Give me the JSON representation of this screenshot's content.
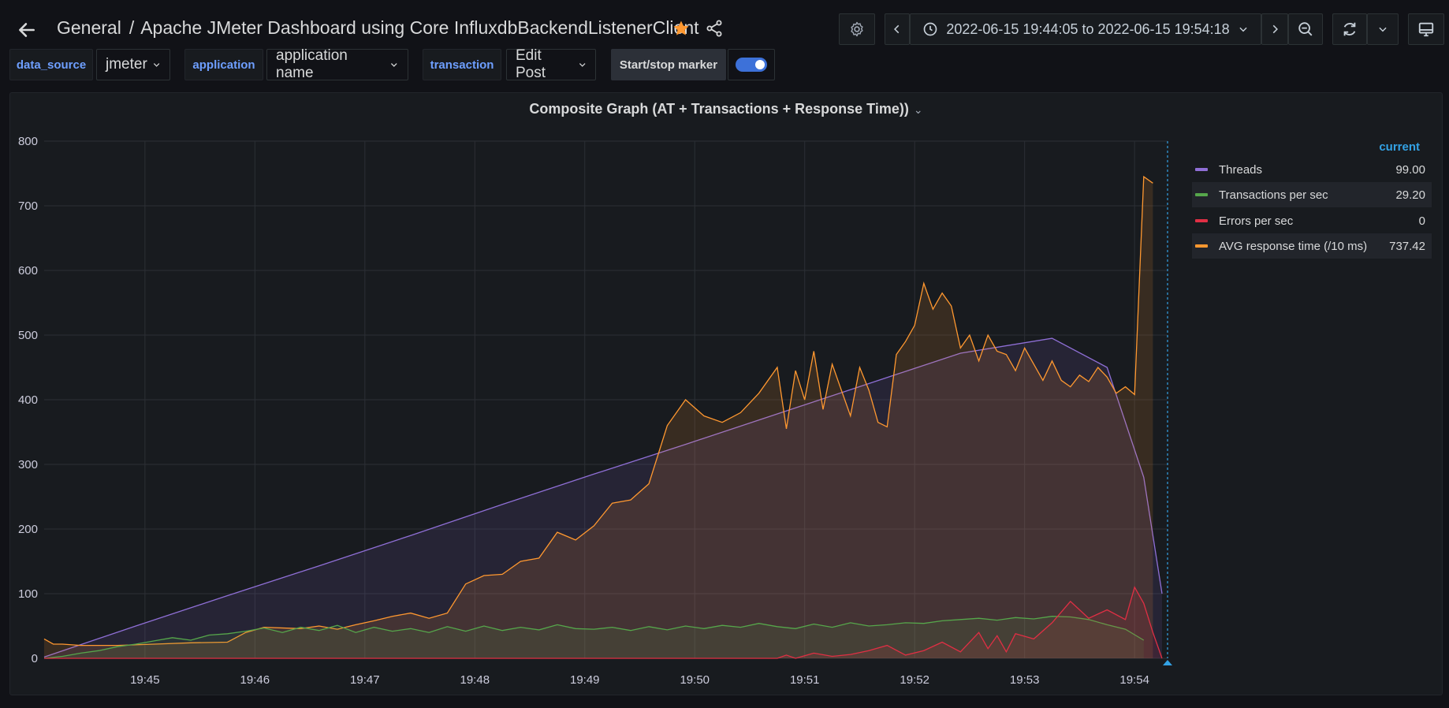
{
  "nav": {
    "folder": "General",
    "separator": "/",
    "title": "Apache JMeter Dashboard using Core InfluxdbBackendListenerClient",
    "time_range": "2022-06-15 19:44:05 to 2022-06-15 19:54:18"
  },
  "icons": {
    "back": "arrow-left-icon",
    "star": "star-icon",
    "share": "share-icon",
    "settings": "gear-icon",
    "prev": "chevron-left-icon",
    "clock": "clock-icon",
    "range_dropdown": "chevron-down-icon",
    "next": "chevron-right-icon",
    "zoom_out": "zoom-out-icon",
    "refresh": "refresh-icon",
    "refresh_dropdown": "chevron-down-icon",
    "tv_mode": "monitor-icon"
  },
  "variables": [
    {
      "label": "data_source",
      "value": "jmeter"
    },
    {
      "label": "application",
      "value": "application name"
    },
    {
      "label": "transaction",
      "value": "Edit Post"
    }
  ],
  "marker": {
    "label": "Start/stop marker",
    "enabled": true
  },
  "panel": {
    "title": "Composite Graph (AT + Transactions + Response Time))"
  },
  "legend": {
    "header": "current",
    "items": [
      {
        "name": "Threads",
        "value": "99.00",
        "color": "#8f6fd6"
      },
      {
        "name": "Transactions per sec",
        "value": "29.20",
        "color": "#56a64b"
      },
      {
        "name": "Errors per sec",
        "value": "0",
        "color": "#e02f44"
      },
      {
        "name": "AVG response time (/10 ms)",
        "value": "737.42",
        "color": "#ff9830"
      }
    ]
  },
  "colors": {
    "threads": "#8f6fd6",
    "transactions": "#56a64b",
    "errors": "#e02f44",
    "response": "#ff9830",
    "accent": "#33a2e5",
    "star": "#ff9830"
  },
  "chart_data": {
    "type": "area",
    "title": "Composite Graph (AT + Transactions + Response Time))",
    "ylim": [
      0,
      800
    ],
    "yticks": [
      "0",
      "100",
      "200",
      "300",
      "400",
      "500",
      "600",
      "700",
      "800"
    ],
    "xticks": [
      "19:45",
      "19:46",
      "19:47",
      "19:48",
      "19:49",
      "19:50",
      "19:51",
      "19:52",
      "19:53",
      "19:54"
    ],
    "x_range_minutes": [
      "19:44:05",
      "19:54:18"
    ],
    "grid": true,
    "legend_placement": "right",
    "series": [
      {
        "name": "Threads",
        "points": [
          [
            0,
            2
          ],
          [
            50,
            50
          ],
          [
            100,
            97
          ],
          [
            150,
            143
          ],
          [
            200,
            190
          ],
          [
            250,
            238
          ],
          [
            300,
            285
          ],
          [
            350,
            331
          ],
          [
            400,
            378
          ],
          [
            450,
            425
          ],
          [
            500,
            472
          ],
          [
            550,
            495
          ],
          [
            580,
            450
          ],
          [
            600,
            280
          ],
          [
            610,
            100
          ]
        ]
      },
      {
        "name": "Transactions per sec",
        "points": [
          [
            0,
            0
          ],
          [
            10,
            3
          ],
          [
            20,
            8
          ],
          [
            30,
            12
          ],
          [
            40,
            18
          ],
          [
            50,
            22
          ],
          [
            60,
            27
          ],
          [
            70,
            32
          ],
          [
            80,
            28
          ],
          [
            90,
            36
          ],
          [
            100,
            38
          ],
          [
            110,
            42
          ],
          [
            120,
            47
          ],
          [
            130,
            40
          ],
          [
            140,
            48
          ],
          [
            150,
            43
          ],
          [
            160,
            51
          ],
          [
            170,
            40
          ],
          [
            180,
            48
          ],
          [
            190,
            42
          ],
          [
            200,
            46
          ],
          [
            210,
            40
          ],
          [
            220,
            49
          ],
          [
            230,
            42
          ],
          [
            240,
            50
          ],
          [
            250,
            43
          ],
          [
            260,
            48
          ],
          [
            270,
            44
          ],
          [
            280,
            52
          ],
          [
            290,
            46
          ],
          [
            300,
            45
          ],
          [
            310,
            48
          ],
          [
            320,
            43
          ],
          [
            330,
            49
          ],
          [
            340,
            44
          ],
          [
            350,
            50
          ],
          [
            360,
            46
          ],
          [
            370,
            51
          ],
          [
            380,
            48
          ],
          [
            390,
            54
          ],
          [
            400,
            49
          ],
          [
            410,
            46
          ],
          [
            420,
            53
          ],
          [
            430,
            48
          ],
          [
            440,
            55
          ],
          [
            450,
            50
          ],
          [
            460,
            52
          ],
          [
            470,
            55
          ],
          [
            480,
            54
          ],
          [
            490,
            58
          ],
          [
            500,
            60
          ],
          [
            510,
            62
          ],
          [
            520,
            59
          ],
          [
            530,
            63
          ],
          [
            540,
            61
          ],
          [
            550,
            65
          ],
          [
            560,
            64
          ],
          [
            570,
            60
          ],
          [
            580,
            52
          ],
          [
            590,
            45
          ],
          [
            600,
            28
          ]
        ]
      },
      {
        "name": "Errors per sec",
        "points": [
          [
            0,
            0
          ],
          [
            400,
            0
          ],
          [
            405,
            5
          ],
          [
            410,
            0
          ],
          [
            420,
            8
          ],
          [
            430,
            3
          ],
          [
            440,
            6
          ],
          [
            450,
            12
          ],
          [
            460,
            20
          ],
          [
            470,
            5
          ],
          [
            480,
            12
          ],
          [
            490,
            25
          ],
          [
            500,
            10
          ],
          [
            510,
            40
          ],
          [
            515,
            15
          ],
          [
            520,
            35
          ],
          [
            525,
            10
          ],
          [
            530,
            38
          ],
          [
            540,
            30
          ],
          [
            550,
            55
          ],
          [
            560,
            88
          ],
          [
            570,
            62
          ],
          [
            580,
            75
          ],
          [
            590,
            60
          ],
          [
            595,
            110
          ],
          [
            600,
            85
          ],
          [
            605,
            40
          ],
          [
            610,
            0
          ]
        ]
      },
      {
        "name": "AVG response time (/10 ms)",
        "points": [
          [
            0,
            30
          ],
          [
            5,
            22
          ],
          [
            10,
            22
          ],
          [
            20,
            20
          ],
          [
            40,
            20
          ],
          [
            60,
            22
          ],
          [
            80,
            24
          ],
          [
            100,
            25
          ],
          [
            110,
            40
          ],
          [
            120,
            48
          ],
          [
            140,
            46
          ],
          [
            150,
            50
          ],
          [
            160,
            45
          ],
          [
            170,
            52
          ],
          [
            180,
            58
          ],
          [
            190,
            65
          ],
          [
            200,
            70
          ],
          [
            210,
            62
          ],
          [
            220,
            70
          ],
          [
            230,
            115
          ],
          [
            240,
            128
          ],
          [
            250,
            130
          ],
          [
            260,
            150
          ],
          [
            270,
            155
          ],
          [
            280,
            195
          ],
          [
            290,
            183
          ],
          [
            300,
            205
          ],
          [
            310,
            240
          ],
          [
            320,
            245
          ],
          [
            330,
            270
          ],
          [
            340,
            360
          ],
          [
            350,
            400
          ],
          [
            360,
            375
          ],
          [
            370,
            365
          ],
          [
            380,
            380
          ],
          [
            390,
            410
          ],
          [
            400,
            450
          ],
          [
            405,
            355
          ],
          [
            410,
            445
          ],
          [
            415,
            400
          ],
          [
            420,
            475
          ],
          [
            425,
            385
          ],
          [
            430,
            455
          ],
          [
            440,
            375
          ],
          [
            445,
            450
          ],
          [
            450,
            415
          ],
          [
            455,
            365
          ],
          [
            460,
            358
          ],
          [
            465,
            470
          ],
          [
            470,
            490
          ],
          [
            475,
            515
          ],
          [
            480,
            580
          ],
          [
            485,
            540
          ],
          [
            490,
            565
          ],
          [
            495,
            545
          ],
          [
            500,
            480
          ],
          [
            505,
            500
          ],
          [
            510,
            460
          ],
          [
            515,
            500
          ],
          [
            520,
            475
          ],
          [
            525,
            470
          ],
          [
            530,
            445
          ],
          [
            535,
            480
          ],
          [
            540,
            455
          ],
          [
            545,
            430
          ],
          [
            550,
            460
          ],
          [
            555,
            430
          ],
          [
            560,
            420
          ],
          [
            565,
            438
          ],
          [
            570,
            428
          ],
          [
            575,
            450
          ],
          [
            580,
            435
          ],
          [
            585,
            410
          ],
          [
            590,
            420
          ],
          [
            595,
            408
          ],
          [
            600,
            745
          ],
          [
            605,
            735
          ]
        ]
      }
    ]
  }
}
